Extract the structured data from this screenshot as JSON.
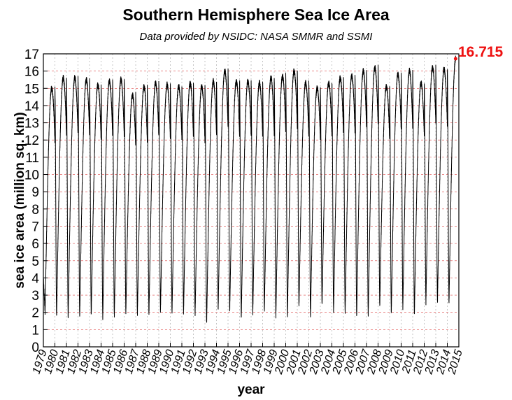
{
  "chart_data": {
    "type": "line",
    "title": "Southern Hemisphere Sea Ice Area",
    "subtitle": "Data provided by NSIDC: NASA SMMR and SSMI",
    "xlabel": "year",
    "ylabel": "sea ice area (million sq. km)",
    "xlim": [
      1979,
      2015
    ],
    "ylim": [
      0,
      17
    ],
    "x_ticks": [
      "1979",
      "1980",
      "1981",
      "1982",
      "1983",
      "1984",
      "1985",
      "1986",
      "1987",
      "1988",
      "1989",
      "1990",
      "1991",
      "1992",
      "1993",
      "1994",
      "1995",
      "1996",
      "1997",
      "1998",
      "1999",
      "2000",
      "2001",
      "2002",
      "2003",
      "2004",
      "2005",
      "2006",
      "2007",
      "2008",
      "2009",
      "2010",
      "2011",
      "2012",
      "2013",
      "2014",
      "2015"
    ],
    "y_ticks": [
      "0",
      "1",
      "2",
      "3",
      "4",
      "5",
      "6",
      "7",
      "8",
      "9",
      "10",
      "11",
      "12",
      "13",
      "14",
      "15",
      "16",
      "17"
    ],
    "grid": true,
    "line_color": "#000000",
    "grid_color": "#dd4444",
    "annotation": {
      "text": "16.715",
      "color": "#ee1111"
    },
    "series": [
      {
        "years": [
          1979,
          1980,
          1981,
          1982,
          1983,
          1984,
          1985,
          1986,
          1987,
          1988,
          1989,
          1990,
          1991,
          1992,
          1993,
          1994,
          1995,
          1996,
          1997,
          1998,
          1999,
          2000,
          2001,
          2002,
          2003,
          2004,
          2005,
          2006,
          2007,
          2008,
          2009,
          2010,
          2011,
          2012,
          2013,
          2014
        ],
        "annual_max": [
          15.0,
          15.6,
          15.6,
          15.5,
          15.2,
          15.4,
          15.5,
          14.6,
          15.1,
          15.3,
          15.2,
          15.1,
          15.3,
          15.1,
          15.4,
          16.0,
          15.4,
          15.4,
          15.3,
          15.6,
          15.7,
          16.0,
          15.3,
          15.0,
          15.3,
          15.6,
          15.7,
          16.0,
          16.2,
          15.1,
          15.8,
          16.0,
          15.3,
          16.2,
          16.1,
          16.7
        ],
        "annual_min": [
          2.0,
          1.8,
          1.7,
          1.8,
          1.9,
          1.7,
          1.8,
          2.0,
          1.9,
          1.9,
          2.1,
          2.0,
          2.0,
          1.9,
          1.4,
          2.2,
          2.1,
          1.7,
          2.0,
          2.1,
          1.8,
          1.8,
          2.4,
          1.8,
          2.5,
          2.1,
          2.0,
          1.8,
          1.8,
          2.4,
          2.0,
          2.3,
          1.9,
          2.6,
          2.6,
          2.6
        ],
        "last_point": {
          "x": 2014.72,
          "y": 16.715
        }
      }
    ]
  }
}
